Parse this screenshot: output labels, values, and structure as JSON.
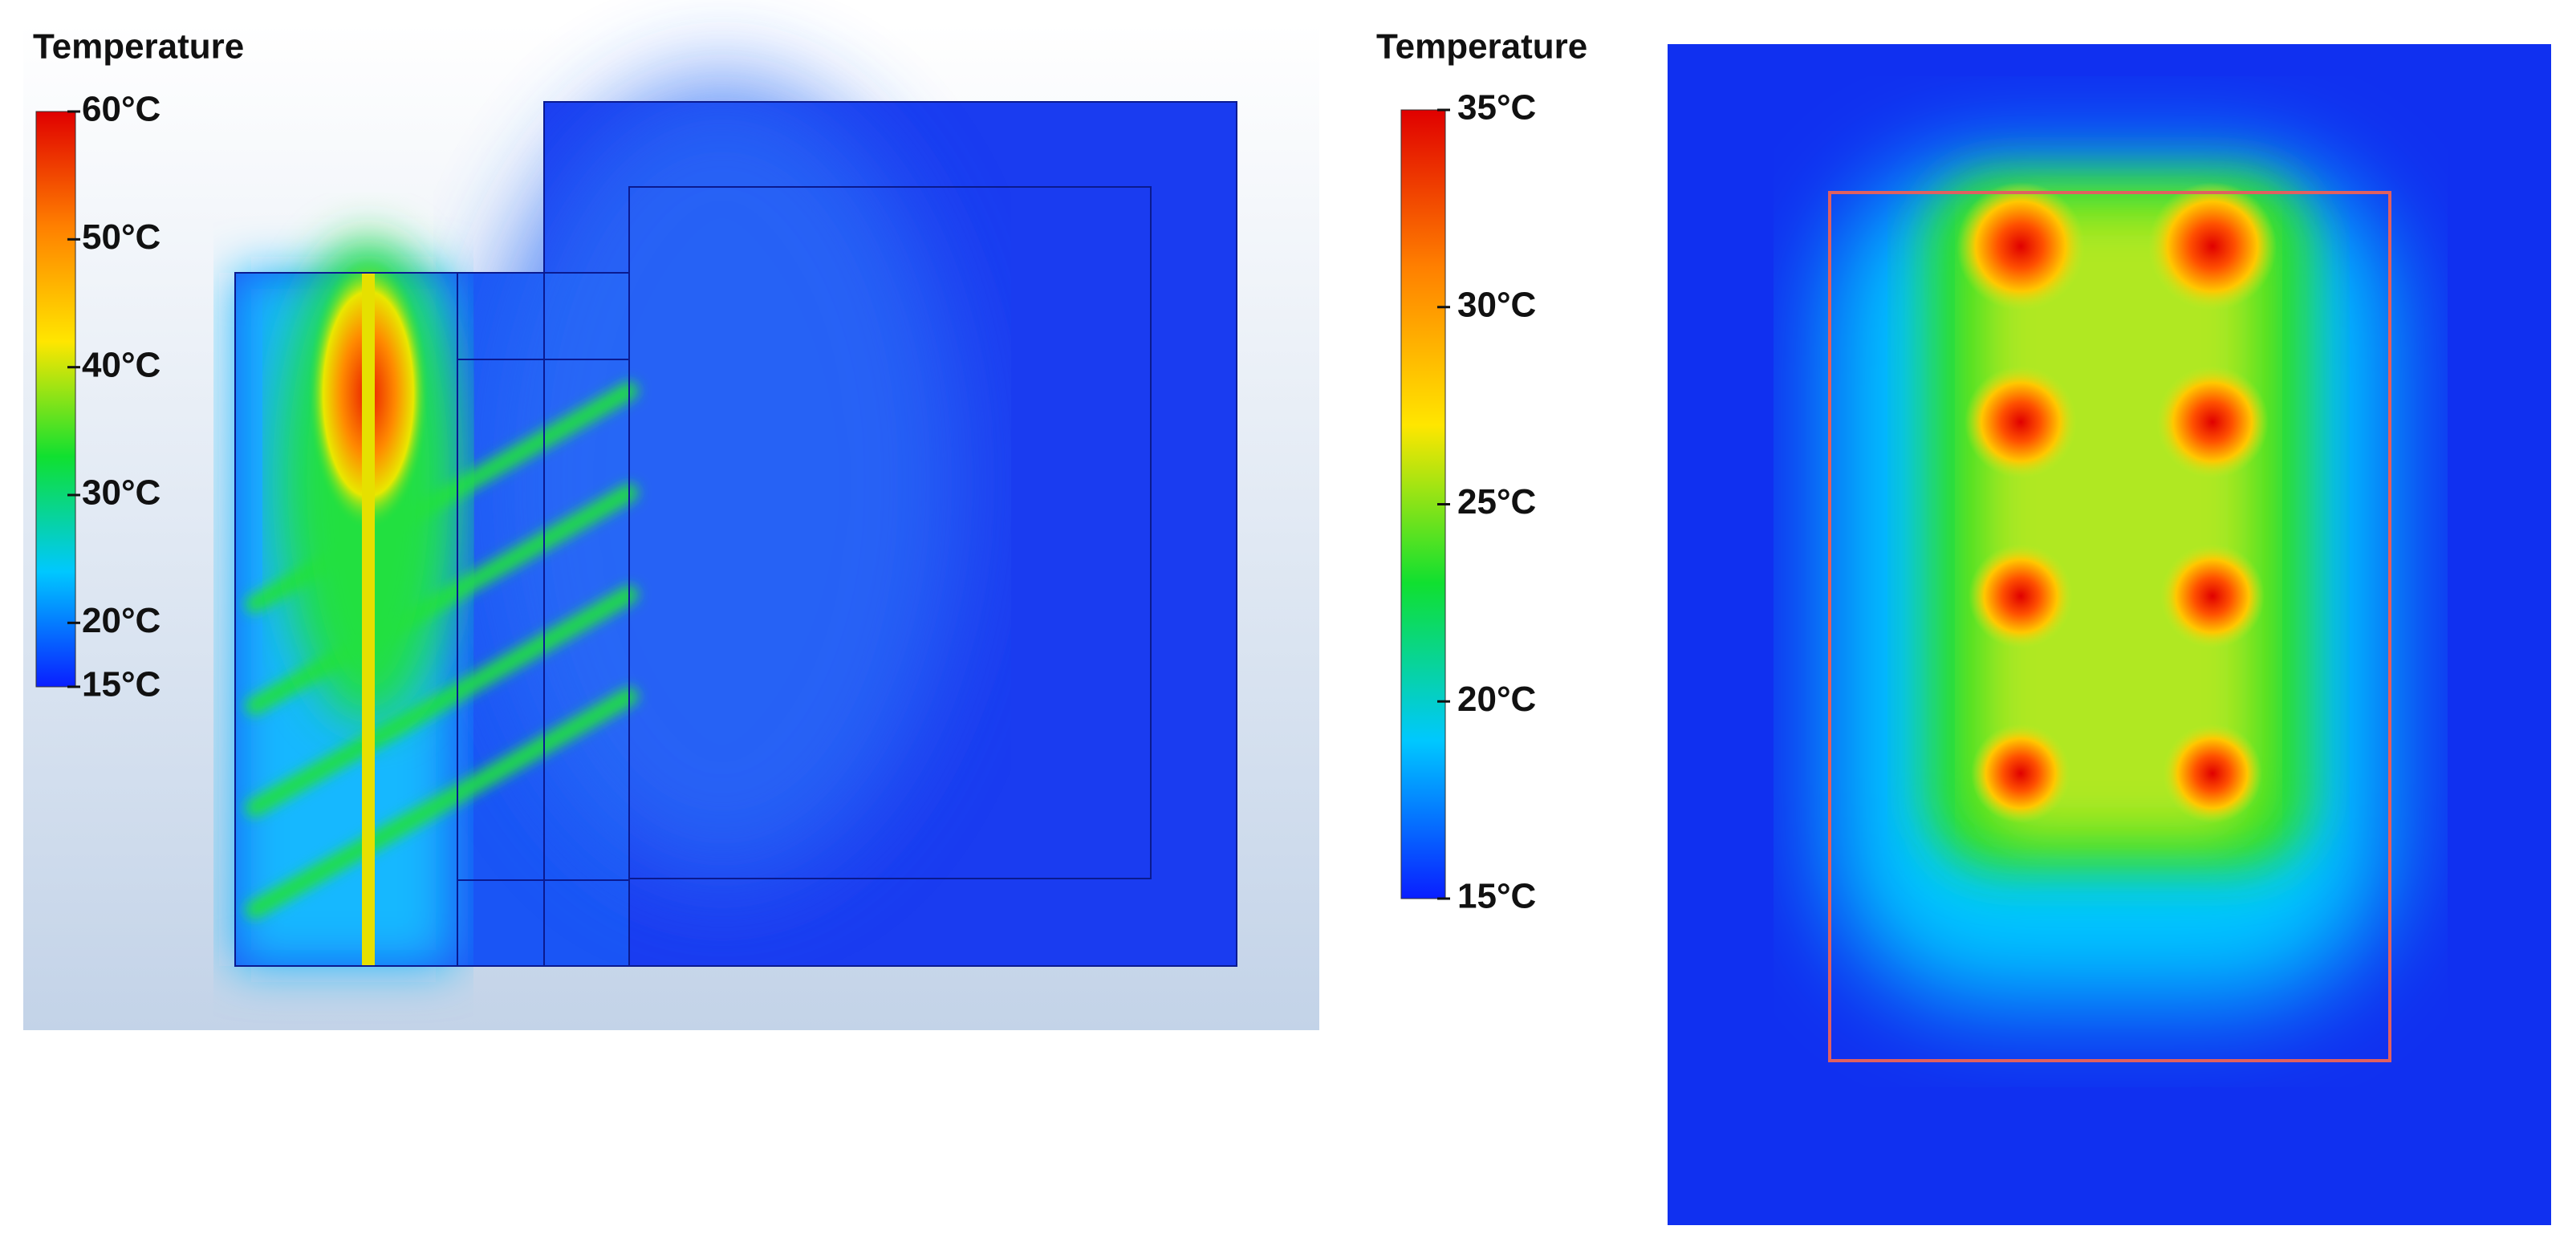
{
  "panels": [
    {
      "title": "Temperature",
      "colorbar": {
        "range": [
          15,
          60
        ],
        "ticks": [
          {
            "value": 60,
            "label": "60°C"
          },
          {
            "value": 50,
            "label": "50°C"
          },
          {
            "value": 40,
            "label": "40°C"
          },
          {
            "value": 30,
            "label": "30°C"
          },
          {
            "value": 20,
            "label": "20°C"
          },
          {
            "value": 15,
            "label": "15°C"
          }
        ],
        "colormap": [
          "#0a1eff",
          "#00c8ff",
          "#10e030",
          "#ffe600",
          "#ff8000",
          "#e00000"
        ]
      }
    },
    {
      "title": "Temperature",
      "colorbar": {
        "range": [
          15,
          35
        ],
        "ticks": [
          {
            "value": 35,
            "label": "35°C"
          },
          {
            "value": 30,
            "label": "30°C"
          },
          {
            "value": 25,
            "label": "25°C"
          },
          {
            "value": 20,
            "label": "20°C"
          },
          {
            "value": 15,
            "label": "15°C"
          }
        ],
        "colormap": [
          "#0a1eff",
          "#00c8ff",
          "#10e030",
          "#ffe600",
          "#ff8000",
          "#e00000"
        ]
      }
    }
  ]
}
